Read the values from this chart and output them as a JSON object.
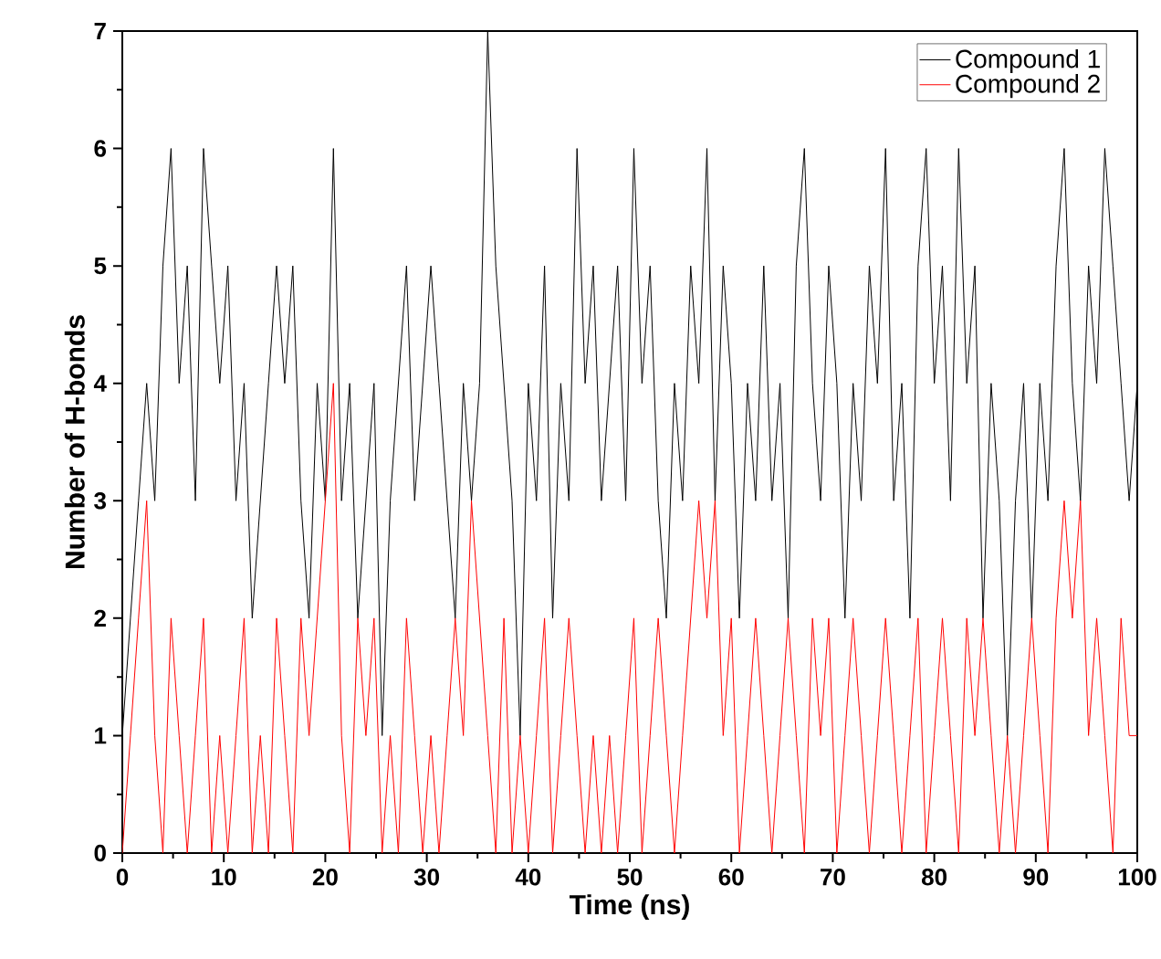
{
  "chart_data": {
    "type": "line",
    "xlabel": "Time (ns)",
    "ylabel": "Number of H-bonds",
    "x": [
      0,
      0.8,
      1.6,
      2.4,
      3.2,
      4,
      4.8,
      5.6,
      6.4,
      7.2,
      8,
      8.8,
      9.6,
      10.4,
      11.2,
      12,
      12.8,
      13.6,
      14.4,
      15.2,
      16,
      16.8,
      17.6,
      18.4,
      19.2,
      20,
      20.8,
      21.6,
      22.4,
      23.2,
      24,
      24.8,
      25.6,
      26.4,
      27.2,
      28,
      28.8,
      29.6,
      30.4,
      31.2,
      32,
      32.8,
      33.6,
      34.4,
      35.2,
      36,
      36.8,
      37.6,
      38.4,
      39.2,
      40,
      40.8,
      41.6,
      42.4,
      43.2,
      44,
      44.8,
      45.6,
      46.4,
      47.2,
      48,
      48.8,
      49.6,
      50.4,
      51.2,
      52,
      52.8,
      53.6,
      54.4,
      55.2,
      56,
      56.8,
      57.6,
      58.4,
      59.2,
      60,
      60.8,
      61.6,
      62.4,
      63.2,
      64,
      64.8,
      65.6,
      66.4,
      67.2,
      68,
      68.8,
      69.6,
      70.4,
      71.2,
      72,
      72.8,
      73.6,
      74.4,
      75.2,
      76,
      76.8,
      77.6,
      78.4,
      79.2,
      80,
      80.8,
      81.6,
      82.4,
      83.2,
      84,
      84.8,
      85.6,
      86.4,
      87.2,
      88,
      88.8,
      89.6,
      90.4,
      91.2,
      92,
      92.8,
      93.6,
      94.4,
      95.2,
      96,
      96.8,
      97.6,
      98.4,
      99.2,
      100
    ],
    "series": [
      {
        "name": "Compound 1",
        "color": "#000000",
        "values": [
          1,
          2,
          3,
          4,
          3,
          5,
          6,
          4,
          5,
          3,
          6,
          5,
          4,
          5,
          3,
          4,
          2,
          3,
          4,
          5,
          4,
          5,
          3,
          2,
          4,
          3,
          6,
          3,
          4,
          2,
          3,
          4,
          1,
          3,
          4,
          5,
          3,
          4,
          5,
          4,
          3,
          2,
          4,
          3,
          4,
          7,
          5,
          4,
          3,
          1,
          4,
          3,
          5,
          2,
          4,
          3,
          6,
          4,
          5,
          3,
          4,
          5,
          3,
          6,
          4,
          5,
          3,
          2,
          4,
          3,
          5,
          4,
          6,
          3,
          5,
          4,
          2,
          4,
          3,
          5,
          3,
          4,
          2,
          5,
          6,
          4,
          3,
          5,
          4,
          2,
          4,
          3,
          5,
          4,
          6,
          3,
          4,
          2,
          5,
          6,
          4,
          5,
          3,
          6,
          4,
          5,
          2,
          4,
          3,
          1,
          3,
          4,
          2,
          4,
          3,
          5,
          6,
          4,
          3,
          5,
          4,
          6,
          5,
          4,
          3,
          4
        ]
      },
      {
        "name": "Compound 2",
        "color": "#ff0000",
        "values": [
          0,
          1,
          2,
          3,
          1,
          0,
          2,
          1,
          0,
          1,
          2,
          0,
          1,
          0,
          1,
          2,
          0,
          1,
          0,
          2,
          1,
          0,
          2,
          1,
          2,
          3,
          4,
          1,
          0,
          2,
          1,
          2,
          0,
          1,
          0,
          2,
          1,
          0,
          1,
          0,
          1,
          2,
          1,
          3,
          2,
          1,
          0,
          2,
          0,
          1,
          0,
          1,
          2,
          0,
          1,
          2,
          1,
          0,
          1,
          0,
          1,
          0,
          1,
          2,
          0,
          1,
          2,
          1,
          0,
          1,
          2,
          3,
          2,
          3,
          1,
          2,
          0,
          1,
          2,
          1,
          0,
          1,
          2,
          1,
          0,
          2,
          1,
          2,
          0,
          1,
          2,
          1,
          0,
          1,
          2,
          1,
          0,
          1,
          2,
          0,
          1,
          2,
          1,
          0,
          2,
          1,
          2,
          1,
          0,
          1,
          0,
          1,
          2,
          1,
          0,
          2,
          3,
          2,
          3,
          1,
          2,
          1,
          0,
          2,
          1,
          1
        ]
      }
    ],
    "xlim": [
      0,
      100
    ],
    "ylim": [
      0,
      7
    ],
    "xticks": [
      0,
      10,
      20,
      30,
      40,
      50,
      60,
      70,
      80,
      90,
      100
    ],
    "yticks": [
      0,
      1,
      2,
      3,
      4,
      5,
      6,
      7
    ],
    "grid": false,
    "legend": "top right",
    "line_style": "solid"
  }
}
